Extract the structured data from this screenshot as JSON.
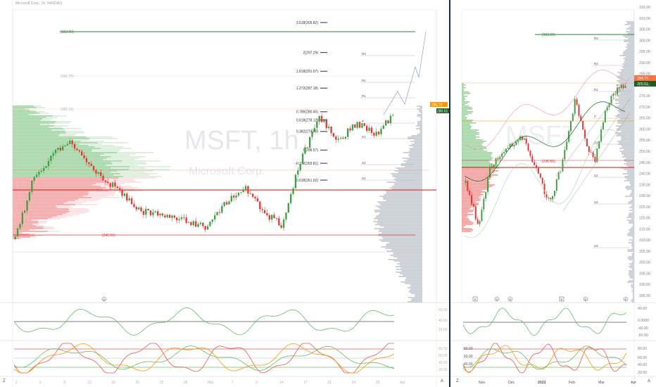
{
  "app": {
    "title": "Microsoft Corp., 1h, NASDAQ"
  },
  "colors": {
    "up": "#26a69a",
    "up_alt": "#4caf50",
    "down": "#ef5350",
    "red_level": "#e53935",
    "green_level": "#43a047",
    "divider": "#1e2a4a",
    "orange": "#ff9800"
  },
  "left_pane": {
    "symbol_watermark": "MSFT, 1h",
    "company_watermark": "Microsoft Corp.",
    "fib_levels": [
      {
        "label": "3.618(305.82)",
        "value": 305.82
      },
      {
        "label": "2(297.29)",
        "value": 297.29
      },
      {
        "label": "1.618(291.97)",
        "value": 291.97
      },
      {
        "label": "1.272(287.18)",
        "value": 287.18
      },
      {
        "label": "0.786(280.45)",
        "value": 280.45
      },
      {
        "label": "0.618(278.12)",
        "value": 278.12
      },
      {
        "label": "0.382(274.85)",
        "value": 274.85
      },
      {
        "label": "0(269.57)",
        "value": 269.57
      },
      {
        "label": "-0.272(265.81)",
        "value": 265.81
      },
      {
        "label": "-0.618(261.02)",
        "value": 261.02
      }
    ],
    "level_labels": {
      "top_green": "(303.96)",
      "bottom_red": "(245.56)",
      "mid_grey": "(281.15)",
      "upper_grey": "(291.75)"
    },
    "pivot_labels": [
      "R3",
      "R2",
      "R1",
      "P",
      "S1",
      "S2",
      "S3"
    ],
    "price_tags": {
      "orange": "284.73",
      "green": "280.51"
    },
    "x_labels": [
      "2",
      "6",
      "9",
      "13",
      "16",
      "21",
      "23",
      "28",
      "Mar",
      "7",
      "9",
      "14",
      "17",
      "21",
      "24",
      "28",
      "Apr"
    ],
    "event_marker": "D",
    "osc1_scale": [
      "60.00",
      "40.00",
      "20.00"
    ],
    "osc2_scale": [
      "80.00",
      "60.00",
      "40.00",
      "20.00"
    ]
  },
  "right_pane": {
    "y_scale": [
      315,
      310,
      305,
      300,
      295,
      290,
      285,
      280,
      275,
      270,
      265,
      260,
      255,
      250,
      245,
      240,
      235,
      230,
      225,
      220,
      215,
      210,
      205,
      200,
      195,
      190,
      185
    ],
    "price_tags": {
      "orange": "284.73",
      "green": "280.51"
    },
    "level_labels": {
      "top_green": "(303.60)",
      "red": "(245.56)"
    },
    "x_labels": [
      "Nov",
      "Dec",
      "2023",
      "Feb",
      "Mar",
      "Apr"
    ],
    "event_markers": [
      "E",
      "D",
      "D",
      "E",
      "D",
      "D"
    ],
    "osc1_scale": [
      "40.00",
      "0.0000",
      "-40.00",
      "-60.00"
    ],
    "osc2_scale": [
      "80.00",
      "60.00",
      "40.00",
      "20.00"
    ]
  },
  "footer": {
    "left_icon": "Z",
    "right_icon": "A"
  }
}
